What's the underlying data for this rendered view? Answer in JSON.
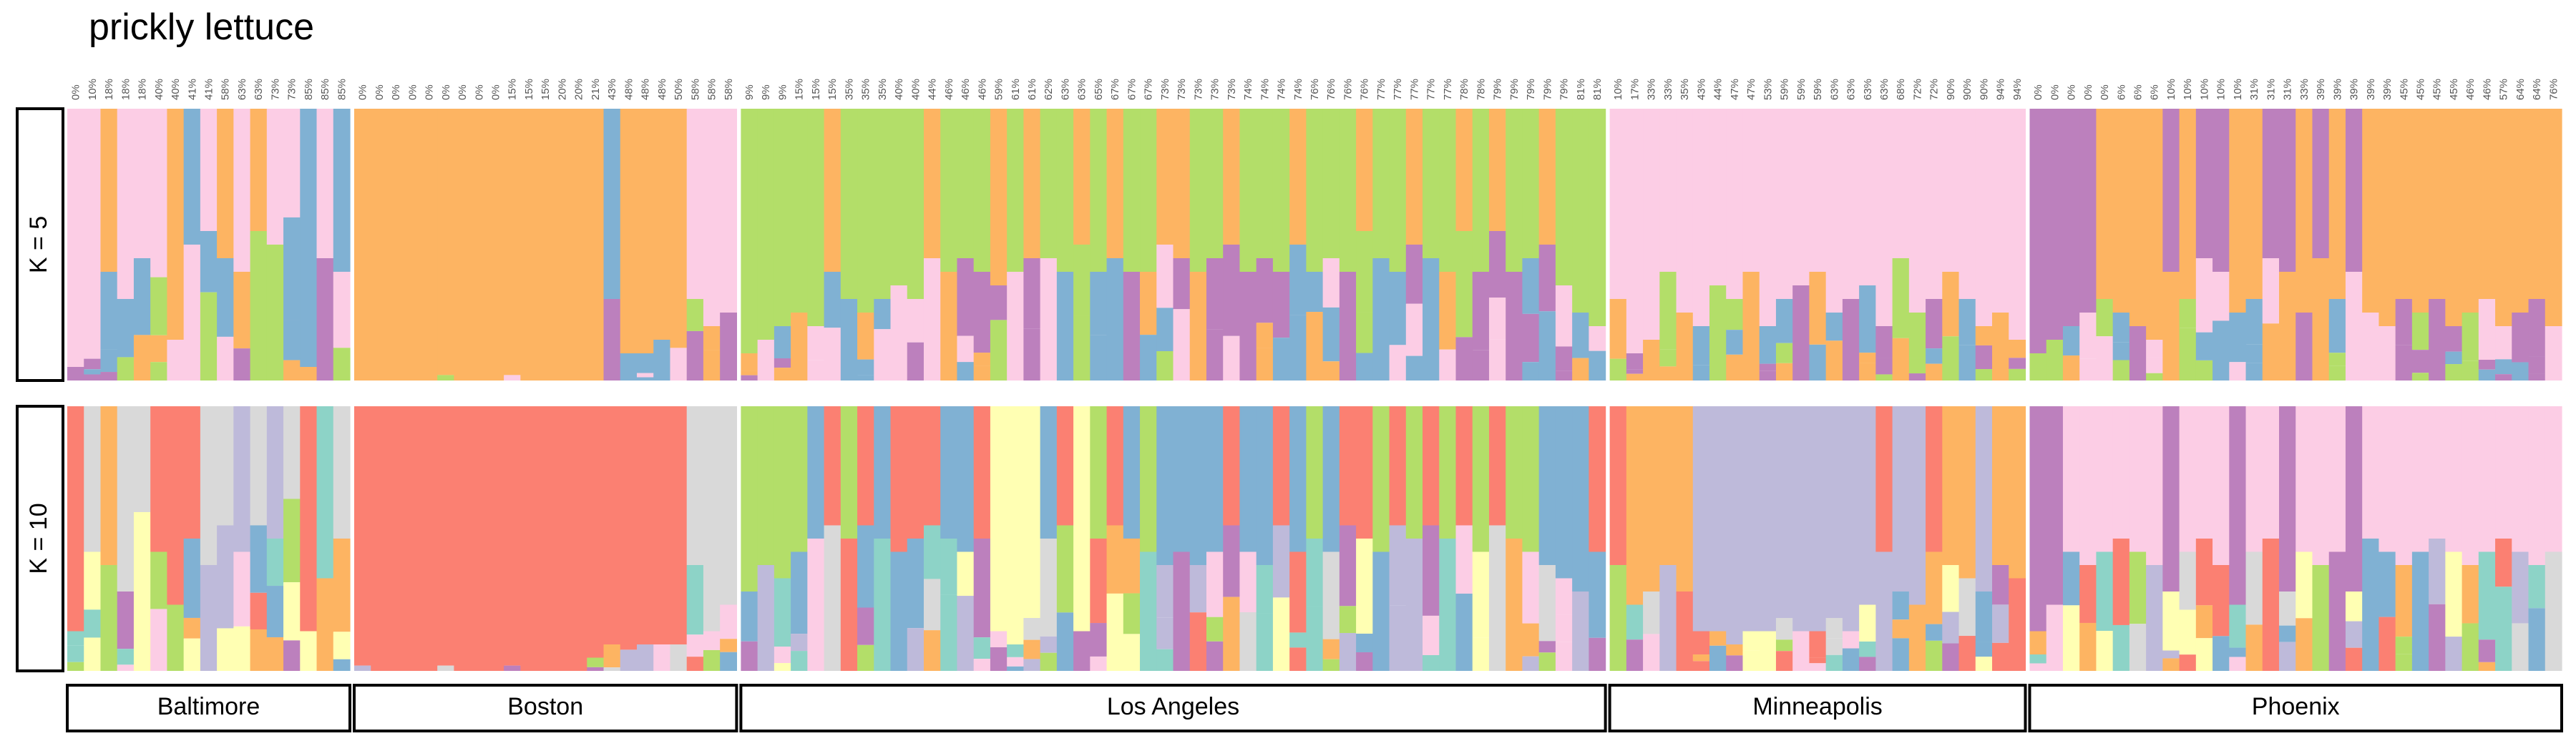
{
  "chart_data": {
    "type": "bar",
    "subtype": "stacked-ancestry (structure plot)",
    "title": "prickly lettuce",
    "panels": [
      {
        "label": "K = 5",
        "k": 5
      },
      {
        "label": "K = 10",
        "k": 10
      }
    ],
    "colors": {
      "teal": "#8dd3c7",
      "yellow": "#ffffb3",
      "lavender": "#bebada",
      "red": "#fb8072",
      "blue": "#80b1d3",
      "orange": "#fdb462",
      "green": "#b3de69",
      "pink": "#fccde5",
      "gray": "#d9d9d9",
      "purple": "#bc80bd"
    },
    "populations": [
      {
        "name": "Baltimore",
        "n": 17,
        "pct_labels": [
          "0%",
          "10%",
          "18%",
          "18%",
          "18%",
          "40%",
          "40%",
          "41%",
          "41%",
          "58%",
          "63%",
          "63%",
          "73%",
          "73%",
          "85%",
          "85%",
          "85%"
        ],
        "k5_dominant": [
          "pink",
          "pink",
          "orange",
          "pink",
          "pink",
          "pink",
          "orange",
          "blue",
          "pink",
          "orange",
          "pink",
          "orange",
          "pink",
          "pink",
          "blue",
          "pink",
          "blue"
        ],
        "k5_top": [
          0.95,
          0.92,
          0.6,
          0.7,
          0.55,
          0.62,
          0.85,
          0.5,
          0.45,
          0.55,
          0.6,
          0.45,
          0.5,
          0.4,
          0.95,
          0.55,
          0.6
        ],
        "k10_dominant": [
          "red",
          "gray",
          "orange",
          "gray",
          "gray",
          "red",
          "red",
          "red",
          "gray",
          "gray",
          "lavender",
          "gray",
          "lavender",
          "gray",
          "red",
          "teal",
          "gray"
        ],
        "k10_top": [
          0.85,
          0.55,
          0.6,
          0.7,
          0.4,
          0.55,
          0.75,
          0.5,
          0.6,
          0.45,
          0.55,
          0.45,
          0.5,
          0.35,
          0.85,
          0.65,
          0.5
        ]
      },
      {
        "name": "Boston",
        "n": 23,
        "pct_labels": [
          "0%",
          "0%",
          "0%",
          "0%",
          "0%",
          "0%",
          "0%",
          "0%",
          "0%",
          "15%",
          "15%",
          "15%",
          "20%",
          "20%",
          "21%",
          "43%",
          "48%",
          "48%",
          "48%",
          "50%",
          "58%",
          "58%",
          "58%"
        ],
        "k5_dominant": [
          "orange",
          "orange",
          "orange",
          "orange",
          "orange",
          "orange",
          "orange",
          "orange",
          "orange",
          "orange",
          "orange",
          "orange",
          "orange",
          "orange",
          "orange",
          "blue",
          "orange",
          "orange",
          "orange",
          "orange",
          "pink",
          "pink",
          "pink"
        ],
        "k5_top": [
          1,
          1,
          1,
          1,
          1,
          0.98,
          1,
          1,
          1,
          0.98,
          1,
          1,
          1,
          1,
          1,
          0.7,
          0.9,
          0.9,
          0.85,
          0.88,
          0.7,
          0.8,
          0.75
        ],
        "k10_dominant": [
          "red",
          "red",
          "red",
          "red",
          "red",
          "red",
          "red",
          "red",
          "red",
          "red",
          "red",
          "red",
          "red",
          "red",
          "red",
          "red",
          "red",
          "red",
          "red",
          "red",
          "gray",
          "gray",
          "gray"
        ],
        "k10_top": [
          0.98,
          1,
          1,
          1,
          1,
          0.98,
          1,
          1,
          1,
          0.98,
          1,
          1,
          1,
          1,
          0.95,
          0.9,
          0.92,
          0.9,
          0.9,
          0.9,
          0.6,
          0.85,
          0.75
        ]
      },
      {
        "name": "Los Angeles",
        "n": 52,
        "pct_labels": [
          "9%",
          "9%",
          "9%",
          "15%",
          "15%",
          "15%",
          "35%",
          "35%",
          "35%",
          "40%",
          "40%",
          "44%",
          "46%",
          "46%",
          "46%",
          "59%",
          "61%",
          "61%",
          "62%",
          "63%",
          "63%",
          "65%",
          "67%",
          "67%",
          "67%",
          "73%",
          "73%",
          "73%",
          "73%",
          "73%",
          "74%",
          "74%",
          "74%",
          "74%",
          "76%",
          "76%",
          "76%",
          "76%",
          "77%",
          "77%",
          "77%",
          "77%",
          "77%",
          "78%",
          "78%",
          "79%",
          "79%",
          "79%",
          "79%",
          "79%",
          "81%",
          "81%"
        ],
        "k5_dominant": [
          "green",
          "green",
          "green",
          "green",
          "green",
          "orange",
          "green",
          "green",
          "green",
          "green",
          "green",
          "orange",
          "green",
          "green",
          "green",
          "orange",
          "green",
          "orange",
          "green",
          "green",
          "orange",
          "green",
          "orange",
          "green",
          "green",
          "orange",
          "orange",
          "green",
          "green",
          "orange",
          "green",
          "green",
          "green",
          "orange",
          "green",
          "green",
          "green",
          "orange",
          "green",
          "green",
          "orange",
          "green",
          "green",
          "orange",
          "green",
          "orange",
          "green",
          "green",
          "orange",
          "green",
          "green",
          "green"
        ],
        "k5_top": [
          0.9,
          0.85,
          0.8,
          0.75,
          0.8,
          0.6,
          0.7,
          0.75,
          0.7,
          0.65,
          0.7,
          0.55,
          0.6,
          0.55,
          0.6,
          0.65,
          0.6,
          0.55,
          0.55,
          0.6,
          0.5,
          0.6,
          0.55,
          0.6,
          0.6,
          0.5,
          0.55,
          0.6,
          0.55,
          0.5,
          0.6,
          0.55,
          0.6,
          0.5,
          0.6,
          0.55,
          0.6,
          0.45,
          0.55,
          0.6,
          0.5,
          0.55,
          0.6,
          0.45,
          0.6,
          0.45,
          0.6,
          0.55,
          0.5,
          0.65,
          0.75,
          0.8
        ],
        "k10_dominant": [
          "green",
          "green",
          "green",
          "green",
          "blue",
          "red",
          "green",
          "red",
          "blue",
          "red",
          "red",
          "red",
          "blue",
          "blue",
          "red",
          "yellow",
          "yellow",
          "yellow",
          "blue",
          "red",
          "yellow",
          "green",
          "red",
          "blue",
          "green",
          "blue",
          "blue",
          "blue",
          "blue",
          "red",
          "blue",
          "blue",
          "red",
          "blue",
          "green",
          "blue",
          "red",
          "red",
          "green",
          "red",
          "green",
          "red",
          "green",
          "red",
          "green",
          "red",
          "green",
          "green",
          "blue",
          "blue",
          "blue",
          "red"
        ],
        "k10_top": [
          0.7,
          0.6,
          0.65,
          0.55,
          0.5,
          0.45,
          0.5,
          0.45,
          0.5,
          0.55,
          0.5,
          0.45,
          0.5,
          0.55,
          0.5,
          0.85,
          0.9,
          0.8,
          0.5,
          0.45,
          0.85,
          0.5,
          0.45,
          0.5,
          0.55,
          0.6,
          0.55,
          0.6,
          0.55,
          0.45,
          0.55,
          0.6,
          0.45,
          0.55,
          0.5,
          0.55,
          0.45,
          0.5,
          0.55,
          0.45,
          0.5,
          0.45,
          0.5,
          0.45,
          0.55,
          0.45,
          0.5,
          0.55,
          0.6,
          0.65,
          0.7,
          0.55
        ]
      },
      {
        "name": "Minneapolis",
        "n": 25,
        "pct_labels": [
          "10%",
          "17%",
          "33%",
          "33%",
          "35%",
          "43%",
          "44%",
          "47%",
          "47%",
          "53%",
          "59%",
          "59%",
          "59%",
          "63%",
          "63%",
          "63%",
          "63%",
          "68%",
          "72%",
          "72%",
          "90%",
          "90%",
          "90%",
          "94%",
          "94%"
        ],
        "k5_dominant": [
          "pink",
          "pink",
          "pink",
          "pink",
          "pink",
          "pink",
          "pink",
          "pink",
          "pink",
          "pink",
          "pink",
          "pink",
          "pink",
          "pink",
          "pink",
          "pink",
          "pink",
          "pink",
          "pink",
          "pink",
          "pink",
          "pink",
          "pink",
          "pink",
          "pink"
        ],
        "k5_top": [
          0.7,
          0.9,
          0.85,
          0.6,
          0.75,
          0.8,
          0.65,
          0.7,
          0.6,
          0.8,
          0.7,
          0.65,
          0.6,
          0.75,
          0.7,
          0.65,
          0.8,
          0.55,
          0.75,
          0.7,
          0.6,
          0.7,
          0.8,
          0.75,
          0.85
        ],
        "k10_dominant": [
          "red",
          "orange",
          "orange",
          "orange",
          "orange",
          "lavender",
          "lavender",
          "lavender",
          "lavender",
          "lavender",
          "lavender",
          "lavender",
          "lavender",
          "lavender",
          "lavender",
          "lavender",
          "red",
          "lavender",
          "lavender",
          "red",
          "orange",
          "orange",
          "lavender",
          "orange",
          "orange"
        ],
        "k10_top": [
          0.6,
          0.75,
          0.7,
          0.6,
          0.7,
          0.85,
          0.85,
          0.9,
          0.85,
          0.85,
          0.8,
          0.85,
          0.85,
          0.8,
          0.85,
          0.75,
          0.55,
          0.7,
          0.75,
          0.55,
          0.6,
          0.65,
          0.7,
          0.6,
          0.65
        ]
      },
      {
        "name": "Phoenix",
        "n": 32,
        "pct_labels": [
          "0%",
          "0%",
          "0%",
          "0%",
          "0%",
          "6%",
          "6%",
          "6%",
          "10%",
          "10%",
          "10%",
          "10%",
          "10%",
          "31%",
          "31%",
          "31%",
          "33%",
          "39%",
          "39%",
          "39%",
          "39%",
          "39%",
          "45%",
          "45%",
          "45%",
          "45%",
          "46%",
          "46%",
          "57%",
          "64%",
          "64%",
          "76%"
        ],
        "k5_dominant": [
          "purple",
          "purple",
          "purple",
          "purple",
          "orange",
          "orange",
          "orange",
          "orange",
          "purple",
          "orange",
          "purple",
          "purple",
          "orange",
          "orange",
          "purple",
          "purple",
          "orange",
          "purple",
          "orange",
          "purple",
          "orange",
          "orange",
          "orange",
          "orange",
          "orange",
          "orange",
          "orange",
          "orange",
          "orange",
          "orange",
          "orange",
          "orange"
        ],
        "k5_top": [
          0.9,
          0.85,
          0.8,
          0.75,
          0.7,
          0.75,
          0.8,
          0.85,
          0.6,
          0.7,
          0.55,
          0.6,
          0.75,
          0.7,
          0.55,
          0.6,
          0.75,
          0.55,
          0.7,
          0.6,
          0.75,
          0.8,
          0.7,
          0.75,
          0.7,
          0.8,
          0.75,
          0.7,
          0.8,
          0.75,
          0.7,
          0.8
        ],
        "k10_dominant": [
          "purple",
          "purple",
          "pink",
          "pink",
          "pink",
          "pink",
          "pink",
          "pink",
          "purple",
          "pink",
          "pink",
          "pink",
          "purple",
          "pink",
          "pink",
          "purple",
          "pink",
          "pink",
          "pink",
          "purple",
          "pink",
          "pink",
          "pink",
          "pink",
          "pink",
          "pink",
          "pink",
          "pink",
          "pink",
          "pink",
          "pink",
          "pink"
        ],
        "k10_top": [
          0.85,
          0.75,
          0.55,
          0.6,
          0.55,
          0.5,
          0.55,
          0.6,
          0.7,
          0.55,
          0.5,
          0.6,
          0.75,
          0.55,
          0.5,
          0.7,
          0.55,
          0.6,
          0.55,
          0.7,
          0.5,
          0.55,
          0.6,
          0.55,
          0.5,
          0.55,
          0.6,
          0.55,
          0.5,
          0.55,
          0.6,
          0.55
        ]
      }
    ],
    "ylim": [
      0,
      1
    ],
    "legend": "none",
    "grid": false
  }
}
